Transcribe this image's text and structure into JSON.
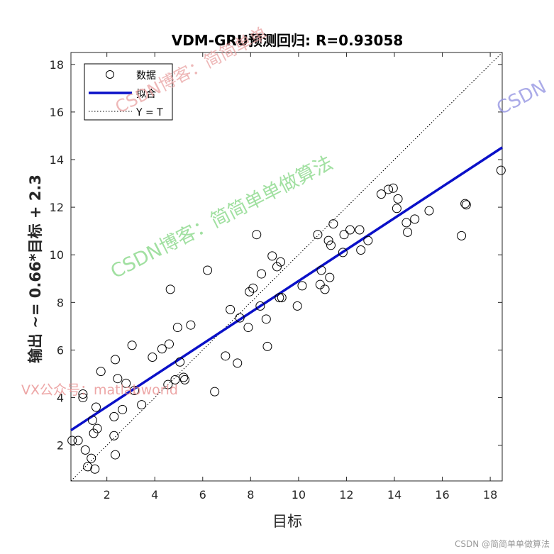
{
  "chart_data": {
    "type": "scatter",
    "title": "VDM-GRU预测回归: R=0.93058",
    "xlabel": "目标",
    "ylabel": "输出 ~= 0.66*目标 + 2.3",
    "xlim": [
      0.5,
      18.5
    ],
    "ylim": [
      0.5,
      18.5
    ],
    "xticks": [
      2,
      4,
      6,
      8,
      10,
      12,
      14,
      16,
      18
    ],
    "yticks": [
      2,
      4,
      6,
      8,
      10,
      12,
      14,
      16,
      18
    ],
    "grid": false,
    "legend_position": "top-left",
    "legend": [
      "数据",
      "拟合",
      "Y = T"
    ],
    "fit": {
      "slope": 0.66,
      "intercept": 2.3,
      "color": "#0a10c8"
    },
    "identity_line": {
      "style": "dotted",
      "color": "#000000"
    },
    "series": [
      {
        "name": "数据",
        "marker": "open-circle",
        "color": "#000000",
        "points": [
          [
            0.55,
            2.2
          ],
          [
            0.8,
            2.2
          ],
          [
            1.0,
            4.0
          ],
          [
            1.0,
            4.15
          ],
          [
            1.1,
            1.8
          ],
          [
            1.2,
            1.1
          ],
          [
            1.35,
            1.45
          ],
          [
            1.4,
            3.05
          ],
          [
            1.45,
            2.5
          ],
          [
            1.5,
            1.0
          ],
          [
            1.55,
            3.6
          ],
          [
            1.6,
            2.7
          ],
          [
            1.75,
            5.1
          ],
          [
            2.3,
            2.4
          ],
          [
            2.3,
            3.2
          ],
          [
            2.35,
            1.6
          ],
          [
            2.35,
            5.6
          ],
          [
            2.45,
            4.8
          ],
          [
            2.65,
            3.5
          ],
          [
            2.8,
            4.6
          ],
          [
            3.05,
            6.2
          ],
          [
            3.15,
            4.3
          ],
          [
            3.45,
            3.7
          ],
          [
            3.9,
            5.7
          ],
          [
            4.3,
            6.05
          ],
          [
            4.55,
            4.55
          ],
          [
            4.6,
            6.25
          ],
          [
            4.65,
            8.55
          ],
          [
            4.85,
            4.75
          ],
          [
            4.95,
            6.95
          ],
          [
            5.05,
            5.5
          ],
          [
            5.2,
            4.85
          ],
          [
            5.25,
            4.75
          ],
          [
            5.5,
            7.05
          ],
          [
            6.2,
            9.35
          ],
          [
            6.5,
            4.25
          ],
          [
            6.95,
            5.75
          ],
          [
            7.15,
            7.7
          ],
          [
            7.45,
            5.45
          ],
          [
            7.55,
            7.35
          ],
          [
            7.9,
            6.95
          ],
          [
            7.95,
            8.45
          ],
          [
            8.1,
            8.6
          ],
          [
            8.25,
            10.85
          ],
          [
            8.4,
            7.85
          ],
          [
            8.45,
            9.2
          ],
          [
            8.65,
            7.3
          ],
          [
            8.7,
            6.15
          ],
          [
            8.9,
            9.95
          ],
          [
            9.1,
            9.5
          ],
          [
            9.2,
            8.2
          ],
          [
            9.3,
            8.2
          ],
          [
            9.25,
            9.7
          ],
          [
            9.95,
            7.85
          ],
          [
            10.15,
            8.7
          ],
          [
            10.8,
            10.85
          ],
          [
            10.9,
            8.75
          ],
          [
            10.95,
            9.35
          ],
          [
            11.1,
            8.55
          ],
          [
            11.25,
            10.6
          ],
          [
            11.3,
            9.05
          ],
          [
            11.35,
            10.4
          ],
          [
            11.45,
            11.3
          ],
          [
            11.85,
            10.1
          ],
          [
            11.9,
            10.85
          ],
          [
            12.15,
            11.05
          ],
          [
            12.55,
            11.05
          ],
          [
            12.6,
            10.2
          ],
          [
            12.9,
            10.6
          ],
          [
            13.45,
            12.55
          ],
          [
            13.75,
            12.75
          ],
          [
            13.95,
            12.8
          ],
          [
            14.1,
            11.95
          ],
          [
            14.15,
            12.35
          ],
          [
            14.5,
            11.35
          ],
          [
            14.55,
            10.95
          ],
          [
            14.85,
            11.5
          ],
          [
            15.45,
            11.85
          ],
          [
            16.8,
            10.8
          ],
          [
            16.95,
            12.15
          ],
          [
            17.0,
            12.1
          ],
          [
            18.45,
            13.55
          ]
        ]
      }
    ]
  },
  "watermarks": {
    "top_red": "CSDN博客：简简单单",
    "right_blue": "CSDN",
    "green": "CSDN博客：简简单单做算法",
    "left_red": "VX公众号：matlabworld"
  },
  "footer": "CSDN @简简单单做算法"
}
